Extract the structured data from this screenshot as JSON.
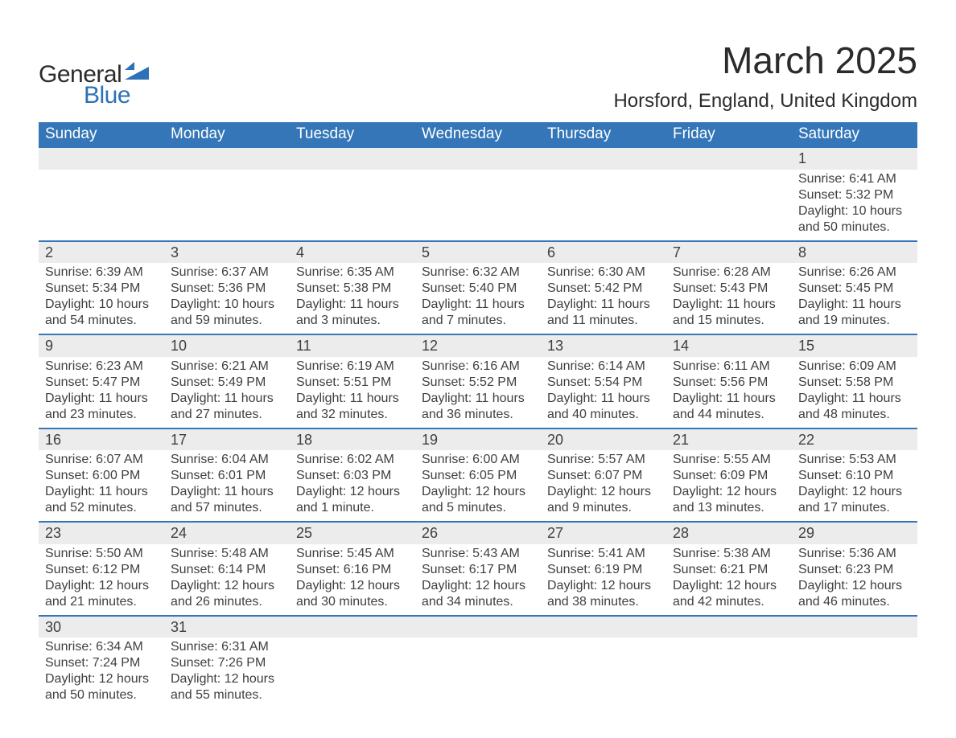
{
  "brand": {
    "general": "General",
    "blue": "Blue",
    "glyph_color": "#2d71b6"
  },
  "title": "March 2025",
  "location": "Horsford, England, United Kingdom",
  "colors": {
    "header_bg": "#3476b8",
    "header_text": "#ffffff",
    "daynum_bg": "#ececec",
    "row_border": "#3476b8",
    "body_text": "#3f3f3f",
    "page_bg": "#ffffff"
  },
  "typography": {
    "title_fontsize": 46,
    "location_fontsize": 24,
    "weekday_fontsize": 19,
    "daynum_fontsize": 18,
    "cell_fontsize": 16,
    "font_family": "Arial"
  },
  "weekdays": [
    "Sunday",
    "Monday",
    "Tuesday",
    "Wednesday",
    "Thursday",
    "Friday",
    "Saturday"
  ],
  "weeks": [
    [
      null,
      null,
      null,
      null,
      null,
      null,
      {
        "d": "1",
        "sr": "Sunrise: 6:41 AM",
        "ss": "Sunset: 5:32 PM",
        "dl1": "Daylight: 10 hours",
        "dl2": "and 50 minutes."
      }
    ],
    [
      {
        "d": "2",
        "sr": "Sunrise: 6:39 AM",
        "ss": "Sunset: 5:34 PM",
        "dl1": "Daylight: 10 hours",
        "dl2": "and 54 minutes."
      },
      {
        "d": "3",
        "sr": "Sunrise: 6:37 AM",
        "ss": "Sunset: 5:36 PM",
        "dl1": "Daylight: 10 hours",
        "dl2": "and 59 minutes."
      },
      {
        "d": "4",
        "sr": "Sunrise: 6:35 AM",
        "ss": "Sunset: 5:38 PM",
        "dl1": "Daylight: 11 hours",
        "dl2": "and 3 minutes."
      },
      {
        "d": "5",
        "sr": "Sunrise: 6:32 AM",
        "ss": "Sunset: 5:40 PM",
        "dl1": "Daylight: 11 hours",
        "dl2": "and 7 minutes."
      },
      {
        "d": "6",
        "sr": "Sunrise: 6:30 AM",
        "ss": "Sunset: 5:42 PM",
        "dl1": "Daylight: 11 hours",
        "dl2": "and 11 minutes."
      },
      {
        "d": "7",
        "sr": "Sunrise: 6:28 AM",
        "ss": "Sunset: 5:43 PM",
        "dl1": "Daylight: 11 hours",
        "dl2": "and 15 minutes."
      },
      {
        "d": "8",
        "sr": "Sunrise: 6:26 AM",
        "ss": "Sunset: 5:45 PM",
        "dl1": "Daylight: 11 hours",
        "dl2": "and 19 minutes."
      }
    ],
    [
      {
        "d": "9",
        "sr": "Sunrise: 6:23 AM",
        "ss": "Sunset: 5:47 PM",
        "dl1": "Daylight: 11 hours",
        "dl2": "and 23 minutes."
      },
      {
        "d": "10",
        "sr": "Sunrise: 6:21 AM",
        "ss": "Sunset: 5:49 PM",
        "dl1": "Daylight: 11 hours",
        "dl2": "and 27 minutes."
      },
      {
        "d": "11",
        "sr": "Sunrise: 6:19 AM",
        "ss": "Sunset: 5:51 PM",
        "dl1": "Daylight: 11 hours",
        "dl2": "and 32 minutes."
      },
      {
        "d": "12",
        "sr": "Sunrise: 6:16 AM",
        "ss": "Sunset: 5:52 PM",
        "dl1": "Daylight: 11 hours",
        "dl2": "and 36 minutes."
      },
      {
        "d": "13",
        "sr": "Sunrise: 6:14 AM",
        "ss": "Sunset: 5:54 PM",
        "dl1": "Daylight: 11 hours",
        "dl2": "and 40 minutes."
      },
      {
        "d": "14",
        "sr": "Sunrise: 6:11 AM",
        "ss": "Sunset: 5:56 PM",
        "dl1": "Daylight: 11 hours",
        "dl2": "and 44 minutes."
      },
      {
        "d": "15",
        "sr": "Sunrise: 6:09 AM",
        "ss": "Sunset: 5:58 PM",
        "dl1": "Daylight: 11 hours",
        "dl2": "and 48 minutes."
      }
    ],
    [
      {
        "d": "16",
        "sr": "Sunrise: 6:07 AM",
        "ss": "Sunset: 6:00 PM",
        "dl1": "Daylight: 11 hours",
        "dl2": "and 52 minutes."
      },
      {
        "d": "17",
        "sr": "Sunrise: 6:04 AM",
        "ss": "Sunset: 6:01 PM",
        "dl1": "Daylight: 11 hours",
        "dl2": "and 57 minutes."
      },
      {
        "d": "18",
        "sr": "Sunrise: 6:02 AM",
        "ss": "Sunset: 6:03 PM",
        "dl1": "Daylight: 12 hours",
        "dl2": "and 1 minute."
      },
      {
        "d": "19",
        "sr": "Sunrise: 6:00 AM",
        "ss": "Sunset: 6:05 PM",
        "dl1": "Daylight: 12 hours",
        "dl2": "and 5 minutes."
      },
      {
        "d": "20",
        "sr": "Sunrise: 5:57 AM",
        "ss": "Sunset: 6:07 PM",
        "dl1": "Daylight: 12 hours",
        "dl2": "and 9 minutes."
      },
      {
        "d": "21",
        "sr": "Sunrise: 5:55 AM",
        "ss": "Sunset: 6:09 PM",
        "dl1": "Daylight: 12 hours",
        "dl2": "and 13 minutes."
      },
      {
        "d": "22",
        "sr": "Sunrise: 5:53 AM",
        "ss": "Sunset: 6:10 PM",
        "dl1": "Daylight: 12 hours",
        "dl2": "and 17 minutes."
      }
    ],
    [
      {
        "d": "23",
        "sr": "Sunrise: 5:50 AM",
        "ss": "Sunset: 6:12 PM",
        "dl1": "Daylight: 12 hours",
        "dl2": "and 21 minutes."
      },
      {
        "d": "24",
        "sr": "Sunrise: 5:48 AM",
        "ss": "Sunset: 6:14 PM",
        "dl1": "Daylight: 12 hours",
        "dl2": "and 26 minutes."
      },
      {
        "d": "25",
        "sr": "Sunrise: 5:45 AM",
        "ss": "Sunset: 6:16 PM",
        "dl1": "Daylight: 12 hours",
        "dl2": "and 30 minutes."
      },
      {
        "d": "26",
        "sr": "Sunrise: 5:43 AM",
        "ss": "Sunset: 6:17 PM",
        "dl1": "Daylight: 12 hours",
        "dl2": "and 34 minutes."
      },
      {
        "d": "27",
        "sr": "Sunrise: 5:41 AM",
        "ss": "Sunset: 6:19 PM",
        "dl1": "Daylight: 12 hours",
        "dl2": "and 38 minutes."
      },
      {
        "d": "28",
        "sr": "Sunrise: 5:38 AM",
        "ss": "Sunset: 6:21 PM",
        "dl1": "Daylight: 12 hours",
        "dl2": "and 42 minutes."
      },
      {
        "d": "29",
        "sr": "Sunrise: 5:36 AM",
        "ss": "Sunset: 6:23 PM",
        "dl1": "Daylight: 12 hours",
        "dl2": "and 46 minutes."
      }
    ],
    [
      {
        "d": "30",
        "sr": "Sunrise: 6:34 AM",
        "ss": "Sunset: 7:24 PM",
        "dl1": "Daylight: 12 hours",
        "dl2": "and 50 minutes."
      },
      {
        "d": "31",
        "sr": "Sunrise: 6:31 AM",
        "ss": "Sunset: 7:26 PM",
        "dl1": "Daylight: 12 hours",
        "dl2": "and 55 minutes."
      },
      null,
      null,
      null,
      null,
      null
    ]
  ]
}
